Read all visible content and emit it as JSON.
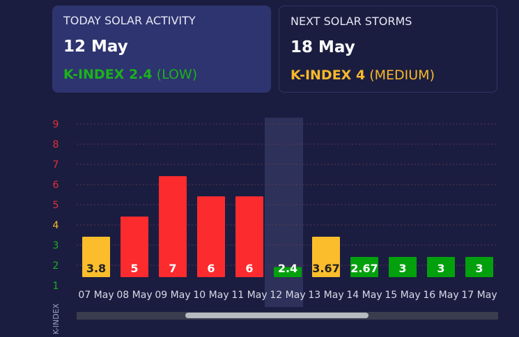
{
  "today": {
    "label": "TODAY SOLAR ACTIVITY",
    "date": "12 May",
    "kindex_value": "K-INDEX 2.4",
    "kindex_level": "(LOW)",
    "color": "#1bb31b"
  },
  "next": {
    "label": "NEXT SOLAR STORMS",
    "date": "18 May",
    "kindex_value": "K-INDEX 4",
    "kindex_level": "(MEDIUM)",
    "color": "#f8b92a"
  },
  "chart_data": {
    "type": "bar",
    "categories": [
      "07 May",
      "08 May",
      "09 May",
      "10 May",
      "11 May",
      "12 May",
      "13 May",
      "14 May",
      "15 May",
      "16 May",
      "17 May"
    ],
    "values": [
      3.8,
      5,
      7,
      6,
      6,
      2.4,
      3.67,
      2.67,
      3,
      3,
      3
    ],
    "labels": [
      "3.8",
      "5",
      "7",
      "6",
      "6",
      "2.4",
      "3.67",
      "2.67",
      "3",
      "3",
      "3"
    ],
    "bar_heights": [
      4.0,
      5.0,
      7.0,
      6.0,
      6.0,
      2.5,
      4.0,
      3.0,
      3.0,
      3.0,
      3.0
    ],
    "colors": [
      "#fbbd2c",
      "#fc2b2e",
      "#fc2b2e",
      "#fc2b2e",
      "#fc2b2e",
      "#03a00e",
      "#fbbd2c",
      "#03a00e",
      "#03a00e",
      "#03a00e",
      "#03a00e"
    ],
    "label_colors": [
      "#222222",
      "#ffffff",
      "#ffffff",
      "#ffffff",
      "#ffffff",
      "#ffffff",
      "#222222",
      "#ffffff",
      "#ffffff",
      "#ffffff",
      "#ffffff"
    ],
    "y_ticks": [
      "1",
      "2",
      "3",
      "4",
      "5",
      "6",
      "7",
      "8",
      "9"
    ],
    "y_tick_colors": [
      "#1bb31b",
      "#1bb31b",
      "#1bb31b",
      "#f8b92a",
      "#e0303a",
      "#e0303a",
      "#e0303a",
      "#e0303a",
      "#e0303a"
    ],
    "ylim": [
      1,
      9
    ],
    "ylabel": "K-INDEX",
    "xlabel": "",
    "title": "",
    "highlight_category": "12 May",
    "grid": true
  }
}
